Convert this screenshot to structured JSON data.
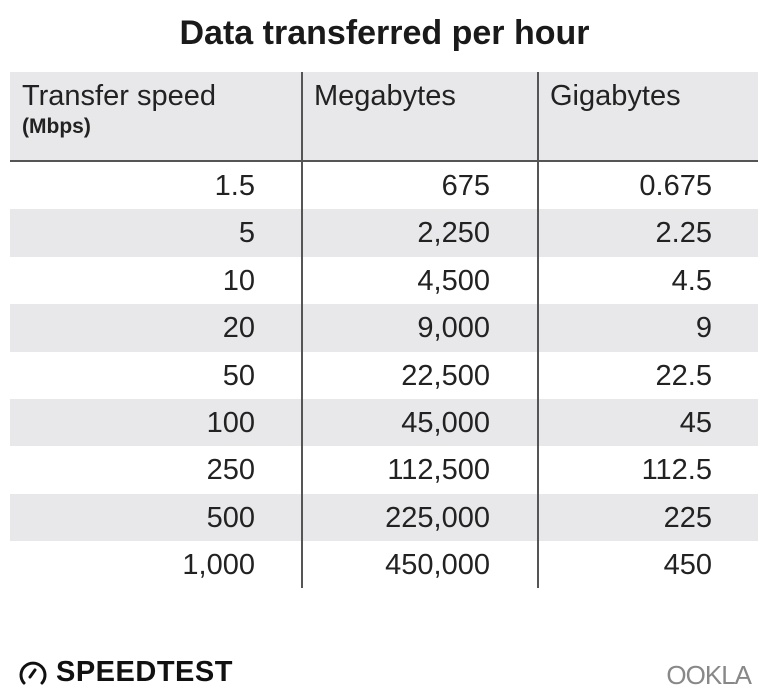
{
  "chart_data": {
    "type": "table",
    "title": "Data transferred per hour",
    "columns": [
      {
        "label": "Transfer speed",
        "sublabel": "(Mbps)"
      },
      {
        "label": "Megabytes"
      },
      {
        "label": "Gigabytes"
      }
    ],
    "rows": [
      [
        "1.5",
        "675",
        "0.675"
      ],
      [
        "5",
        "2,250",
        "2.25"
      ],
      [
        "10",
        "4,500",
        "4.5"
      ],
      [
        "20",
        "9,000",
        "9"
      ],
      [
        "50",
        "22,500",
        "22.5"
      ],
      [
        "100",
        "45,000",
        "45"
      ],
      [
        "250",
        "112,500",
        "112.5"
      ],
      [
        "500",
        "225,000",
        "225"
      ],
      [
        "1,000",
        "450,000",
        "450"
      ]
    ],
    "row_stripe_color": "#e8e8ea"
  },
  "footer": {
    "left_logo": "SPEEDTEST",
    "right_logo": "OOKLA"
  }
}
